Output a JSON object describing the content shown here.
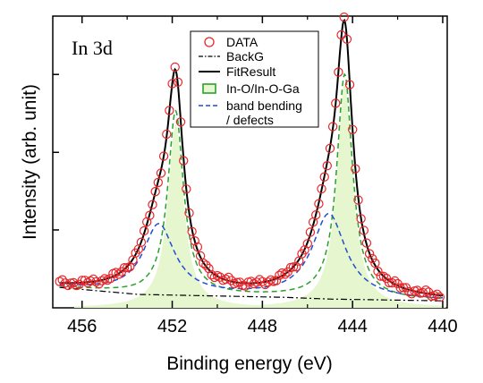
{
  "chart_data": {
    "type": "line",
    "annotation": "In 3d",
    "xlabel": "Binding energy (eV)",
    "ylabel": "Intensity (arb. unit)",
    "xlim": [
      457.3,
      439.8
    ],
    "ylim": [
      0,
      100
    ],
    "x_reversed": true,
    "xticks": [
      456,
      452,
      448,
      444,
      440
    ],
    "xtick_labels": [
      "456",
      "452",
      "448",
      "444",
      "440"
    ],
    "yticks": [
      0,
      26.7,
      53.3,
      80
    ],
    "show_ytick_labels": false,
    "grid": false,
    "legend_position": "top-center",
    "legend": [
      {
        "label": "DATA",
        "style": "circle",
        "color": "#e8262a"
      },
      {
        "label": "BackG",
        "style": "dashdot",
        "color": "#000000"
      },
      {
        "label": "FitResult",
        "style": "solid",
        "color": "#000000"
      },
      {
        "label": "In-O/In-O-Ga",
        "style": "box",
        "color": "#2ca02c",
        "fill": "#e6f6cf"
      },
      {
        "label": "band bending",
        "style": "dashed",
        "color": "#1f4fd0"
      },
      {
        "label": "/ defects",
        "style": "none",
        "color": "#1f4fd0"
      }
    ],
    "colors": {
      "data": "#e8262a",
      "fit": "#000000",
      "green": "#2ca02c",
      "green_fill": "#e6f6cf",
      "blue": "#1f4fd0"
    },
    "series": [
      {
        "name": "DATA",
        "style": "markers",
        "x_range": [
          457.0,
          440.1
        ],
        "x_step": 0.125
      },
      {
        "name": "BackG",
        "points": [
          [
            457.0,
            7.0
          ],
          [
            453.5,
            4.6
          ],
          [
            447.0,
            3.6
          ],
          [
            445.0,
            3.0
          ],
          [
            440.0,
            2.4
          ]
        ]
      },
      {
        "name": "FitResult",
        "style": "line"
      },
      {
        "name": "In-O/In-O-Ga",
        "components": [
          {
            "center": 451.85,
            "height": 63,
            "width": 0.42
          },
          {
            "center": 444.35,
            "height": 77,
            "width": 0.42
          }
        ]
      },
      {
        "name": "band bending",
        "components": [
          {
            "center": 452.6,
            "height": 24,
            "width": 0.85
          },
          {
            "center": 445.05,
            "height": 29,
            "width": 0.9
          }
        ]
      }
    ]
  }
}
